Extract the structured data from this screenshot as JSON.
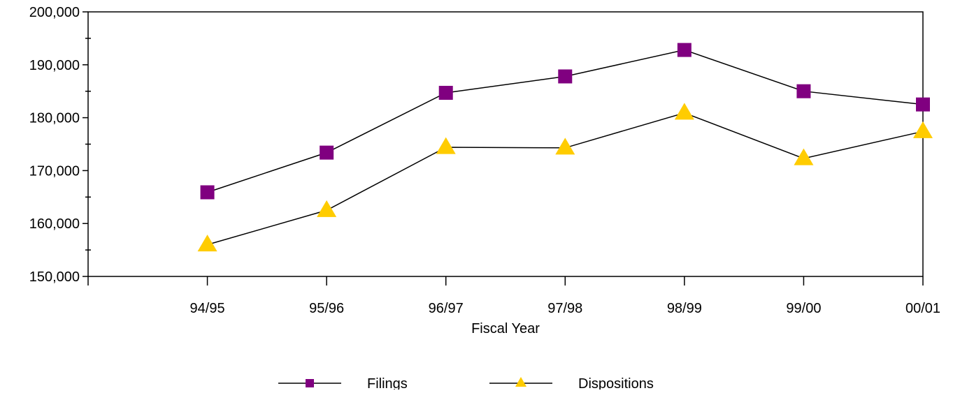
{
  "chart_data": {
    "type": "line",
    "title": "",
    "xlabel": "Fiscal Year",
    "ylabel": "",
    "categories": [
      "94/95",
      "95/96",
      "96/97",
      "97/98",
      "98/99",
      "99/00",
      "00/01"
    ],
    "ylim": [
      150000,
      200000
    ],
    "y_major_ticks": [
      150000,
      160000,
      170000,
      180000,
      190000,
      200000
    ],
    "y_tick_labels": [
      "150,000",
      "160,000",
      "170,000",
      "180,000",
      "190,000",
      "200,000"
    ],
    "y_minor_ticks": [
      155000,
      165000,
      175000,
      185000,
      195000
    ],
    "grid": false,
    "legend_position": "bottom-center",
    "series": [
      {
        "name": "Filings",
        "marker": "square",
        "color": "#800080",
        "line_color": "#000000",
        "values": [
          165900,
          173400,
          184700,
          187800,
          192800,
          185000,
          182500
        ]
      },
      {
        "name": "Dispositions",
        "marker": "triangle",
        "color": "#FFCC00",
        "line_color": "#000000",
        "values": [
          156000,
          162500,
          174400,
          174300,
          180900,
          172300,
          177400
        ]
      }
    ]
  }
}
